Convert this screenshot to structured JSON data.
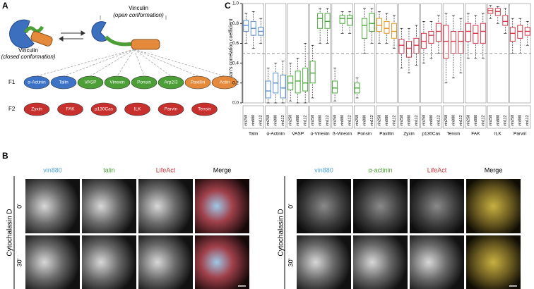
{
  "panel_a": {
    "label": "A",
    "closed": {
      "name": "Vinculin",
      "note": "(closed conformation)"
    },
    "open": {
      "name": "Vinculin",
      "note": "(open conformation)"
    },
    "f1": {
      "label": "F1",
      "items": [
        {
          "name": "α-Actinin",
          "color": "#3d73c6"
        },
        {
          "name": "Talin",
          "color": "#3d73c6"
        },
        {
          "name": "VASP",
          "color": "#4c9e36"
        },
        {
          "name": "Vinexin",
          "color": "#4c9e36"
        },
        {
          "name": "Ponsin",
          "color": "#4c9e36"
        },
        {
          "name": "Arp2/3",
          "color": "#4c9e36"
        },
        {
          "name": "Paxillin",
          "color": "#e5893a"
        },
        {
          "name": "Actin",
          "color": "#e5893a"
        }
      ]
    },
    "f2": {
      "label": "F2",
      "items": [
        {
          "name": "Zyxin",
          "color": "#c8302e"
        },
        {
          "name": "FAK",
          "color": "#c8302e"
        },
        {
          "name": "p130Cas",
          "color": "#c8302e"
        },
        {
          "name": "ILK",
          "color": "#c8302e"
        },
        {
          "name": "Parvin",
          "color": "#c8302e"
        },
        {
          "name": "Tensin",
          "color": "#c8302e"
        }
      ]
    }
  },
  "panel_b": {
    "label": "B",
    "left": {
      "condition": "Cytochalasin D",
      "times": [
        "0'",
        "30'"
      ],
      "channels": [
        {
          "name": "vin880",
          "color": "#4fa8dc"
        },
        {
          "name": "talin",
          "color": "#4c9e36"
        },
        {
          "name": "LifeAct",
          "color": "#c0363a"
        },
        {
          "name": "Merge",
          "color": "#000000"
        }
      ]
    },
    "right": {
      "condition": "Cytochalasin D",
      "times": [
        "0'",
        "30'"
      ],
      "channels": [
        {
          "name": "vin880",
          "color": "#4fa8dc"
        },
        {
          "name": "α-actinin",
          "color": "#4c9e36"
        },
        {
          "name": "LifeAct",
          "color": "#c0363a"
        },
        {
          "name": "Merge",
          "color": "#000000"
        }
      ]
    }
  },
  "chart_data": {
    "type": "box",
    "label": "C",
    "ylabel": "Pearson's correlation coefficient",
    "ylim": [
      0,
      1
    ],
    "yticks": [
      {
        "value": 0,
        "label": "0.0"
      },
      {
        "value": 0.2,
        "label": "0.2"
      },
      {
        "value": 0.4,
        "label": "0.4"
      },
      {
        "value": 0.6,
        "label": "0.6"
      },
      {
        "value": 0.8,
        "label": "0.8"
      },
      {
        "value": 1,
        "label": "1.0"
      }
    ],
    "reference_line": 0.5,
    "groups": [
      {
        "name": "Talin",
        "color": "#5b8fd0",
        "boxes": [
          {
            "label": "vin258",
            "low": 0.6,
            "q1": 0.72,
            "median": 0.78,
            "q3": 0.83,
            "high": 0.9
          },
          {
            "label": "vin880",
            "low": 0.55,
            "q1": 0.68,
            "median": 0.75,
            "q3": 0.82,
            "high": 0.92
          },
          {
            "label": "vin112",
            "low": 0.6,
            "q1": 0.68,
            "median": 0.72,
            "q3": 0.76,
            "high": 0.85
          }
        ]
      },
      {
        "name": "α-Actinin",
        "color": "#5b8fd0",
        "boxes": [
          {
            "label": "vin258",
            "low": 0,
            "q1": 0.05,
            "median": 0.12,
            "q3": 0.22,
            "high": 0.35
          },
          {
            "label": "vin880",
            "low": 0,
            "q1": 0.1,
            "median": 0.2,
            "q3": 0.3,
            "high": 0.4
          },
          {
            "label": "vin112",
            "low": 0,
            "q1": 0.05,
            "median": 0.15,
            "q3": 0.28,
            "high": 0.42
          }
        ]
      },
      {
        "name": "VASP",
        "color": "#4aac3c",
        "boxes": [
          {
            "label": "vin258",
            "low": 0.02,
            "q1": 0.13,
            "median": 0.2,
            "q3": 0.27,
            "high": 0.4
          },
          {
            "label": "vin880",
            "low": 0,
            "q1": 0.1,
            "median": 0.22,
            "q3": 0.32,
            "high": 0.45
          },
          {
            "label": "vin112",
            "low": 0,
            "q1": 0.12,
            "median": 0.2,
            "q3": 0.35,
            "high": 0.6
          }
        ]
      },
      {
        "name": "α-Vinexin",
        "color": "#4aac3c",
        "boxes": [
          {
            "label": "vin258",
            "low": 0.05,
            "q1": 0.2,
            "median": 0.3,
            "q3": 0.42,
            "high": 0.58
          },
          {
            "label": "vin880",
            "low": 0.6,
            "q1": 0.75,
            "median": 0.85,
            "q3": 0.9,
            "high": 0.95
          },
          {
            "label": "vin112",
            "low": 0.6,
            "q1": 0.75,
            "median": 0.82,
            "q3": 0.9,
            "high": 0.95
          }
        ]
      },
      {
        "name": "ß-Vinexin",
        "color": "#4aac3c",
        "boxes": [
          {
            "label": "vin258",
            "low": 0.02,
            "q1": 0.1,
            "median": 0.15,
            "q3": 0.22,
            "high": 0.35
          },
          {
            "label": "vin880",
            "low": 0.7,
            "q1": 0.8,
            "median": 0.85,
            "q3": 0.88,
            "high": 0.92
          },
          {
            "label": "vin112",
            "low": 0.7,
            "q1": 0.78,
            "median": 0.85,
            "q3": 0.88,
            "high": 0.92
          }
        ]
      },
      {
        "name": "Ponsin",
        "color": "#4aac3c",
        "boxes": [
          {
            "label": "vin258",
            "low": 0.05,
            "q1": 0.1,
            "median": 0.15,
            "q3": 0.2,
            "high": 0.25
          },
          {
            "label": "vin880",
            "low": 0.5,
            "q1": 0.65,
            "median": 0.78,
            "q3": 0.85,
            "high": 0.95
          },
          {
            "label": "vin112",
            "low": 0.6,
            "q1": 0.72,
            "median": 0.8,
            "q3": 0.9,
            "high": 0.95
          }
        ]
      },
      {
        "name": "Paxillin",
        "color": "#e8952e",
        "boxes": [
          {
            "label": "vin258",
            "low": 0.6,
            "q1": 0.72,
            "median": 0.78,
            "q3": 0.85,
            "high": 0.92
          },
          {
            "label": "vin880",
            "low": 0.6,
            "q1": 0.7,
            "median": 0.75,
            "q3": 0.82,
            "high": 0.9
          },
          {
            "label": "vin112",
            "low": 0.55,
            "q1": 0.65,
            "median": 0.72,
            "q3": 0.8,
            "high": 0.88
          }
        ]
      },
      {
        "name": "Zyxin",
        "color": "#d2384a",
        "boxes": [
          {
            "label": "vin258",
            "low": 0.35,
            "q1": 0.5,
            "median": 0.58,
            "q3": 0.64,
            "high": 0.75
          },
          {
            "label": "vin880",
            "low": 0.3,
            "q1": 0.46,
            "median": 0.55,
            "q3": 0.62,
            "high": 0.75
          },
          {
            "label": "vin112",
            "low": 0.38,
            "q1": 0.5,
            "median": 0.58,
            "q3": 0.65,
            "high": 0.78
          }
        ]
      },
      {
        "name": "p130Cas",
        "color": "#d2384a",
        "boxes": [
          {
            "label": "vin258",
            "low": 0.4,
            "q1": 0.55,
            "median": 0.62,
            "q3": 0.7,
            "high": 0.82
          },
          {
            "label": "vin880",
            "low": 0.45,
            "q1": 0.6,
            "median": 0.68,
            "q3": 0.72,
            "high": 0.82
          },
          {
            "label": "vin112",
            "low": 0.5,
            "q1": 0.62,
            "median": 0.72,
            "q3": 0.8,
            "high": 0.88
          }
        ]
      },
      {
        "name": "Tensin",
        "color": "#d2384a",
        "boxes": [
          {
            "label": "vin258",
            "low": 0.2,
            "q1": 0.45,
            "median": 0.62,
            "q3": 0.78,
            "high": 0.9
          },
          {
            "label": "vin880",
            "low": 0.25,
            "q1": 0.5,
            "median": 0.62,
            "q3": 0.72,
            "high": 0.88
          },
          {
            "label": "vin112",
            "low": 0.3,
            "q1": 0.5,
            "median": 0.62,
            "q3": 0.72,
            "high": 0.85
          }
        ]
      },
      {
        "name": "FAK",
        "color": "#d2384a",
        "boxes": [
          {
            "label": "vin258",
            "low": 0.45,
            "q1": 0.62,
            "median": 0.72,
            "q3": 0.8,
            "high": 0.9
          },
          {
            "label": "vin880",
            "low": 0.45,
            "q1": 0.6,
            "median": 0.7,
            "q3": 0.78,
            "high": 0.88
          },
          {
            "label": "vin112",
            "low": 0.45,
            "q1": 0.6,
            "median": 0.72,
            "q3": 0.8,
            "high": 0.9
          }
        ]
      },
      {
        "name": "ILK",
        "color": "#d2384a",
        "boxes": [
          {
            "label": "vin258",
            "low": 0.85,
            "q1": 0.9,
            "median": 0.93,
            "q3": 0.95,
            "high": 0.98
          },
          {
            "label": "vin880",
            "low": 0.8,
            "q1": 0.88,
            "median": 0.92,
            "q3": 0.95,
            "high": 0.97
          },
          {
            "label": "vin112",
            "low": 0.7,
            "q1": 0.78,
            "median": 0.82,
            "q3": 0.88,
            "high": 0.95
          }
        ]
      },
      {
        "name": "Parvin",
        "color": "#d2384a",
        "boxes": [
          {
            "label": "vin258",
            "low": 0.5,
            "q1": 0.62,
            "median": 0.7,
            "q3": 0.76,
            "high": 0.85
          },
          {
            "label": "vin880",
            "low": 0.5,
            "q1": 0.65,
            "median": 0.72,
            "q3": 0.78,
            "high": 0.85
          },
          {
            "label": "vin112",
            "low": 0.58,
            "q1": 0.68,
            "median": 0.72,
            "q3": 0.76,
            "high": 0.82
          }
        ]
      }
    ]
  }
}
